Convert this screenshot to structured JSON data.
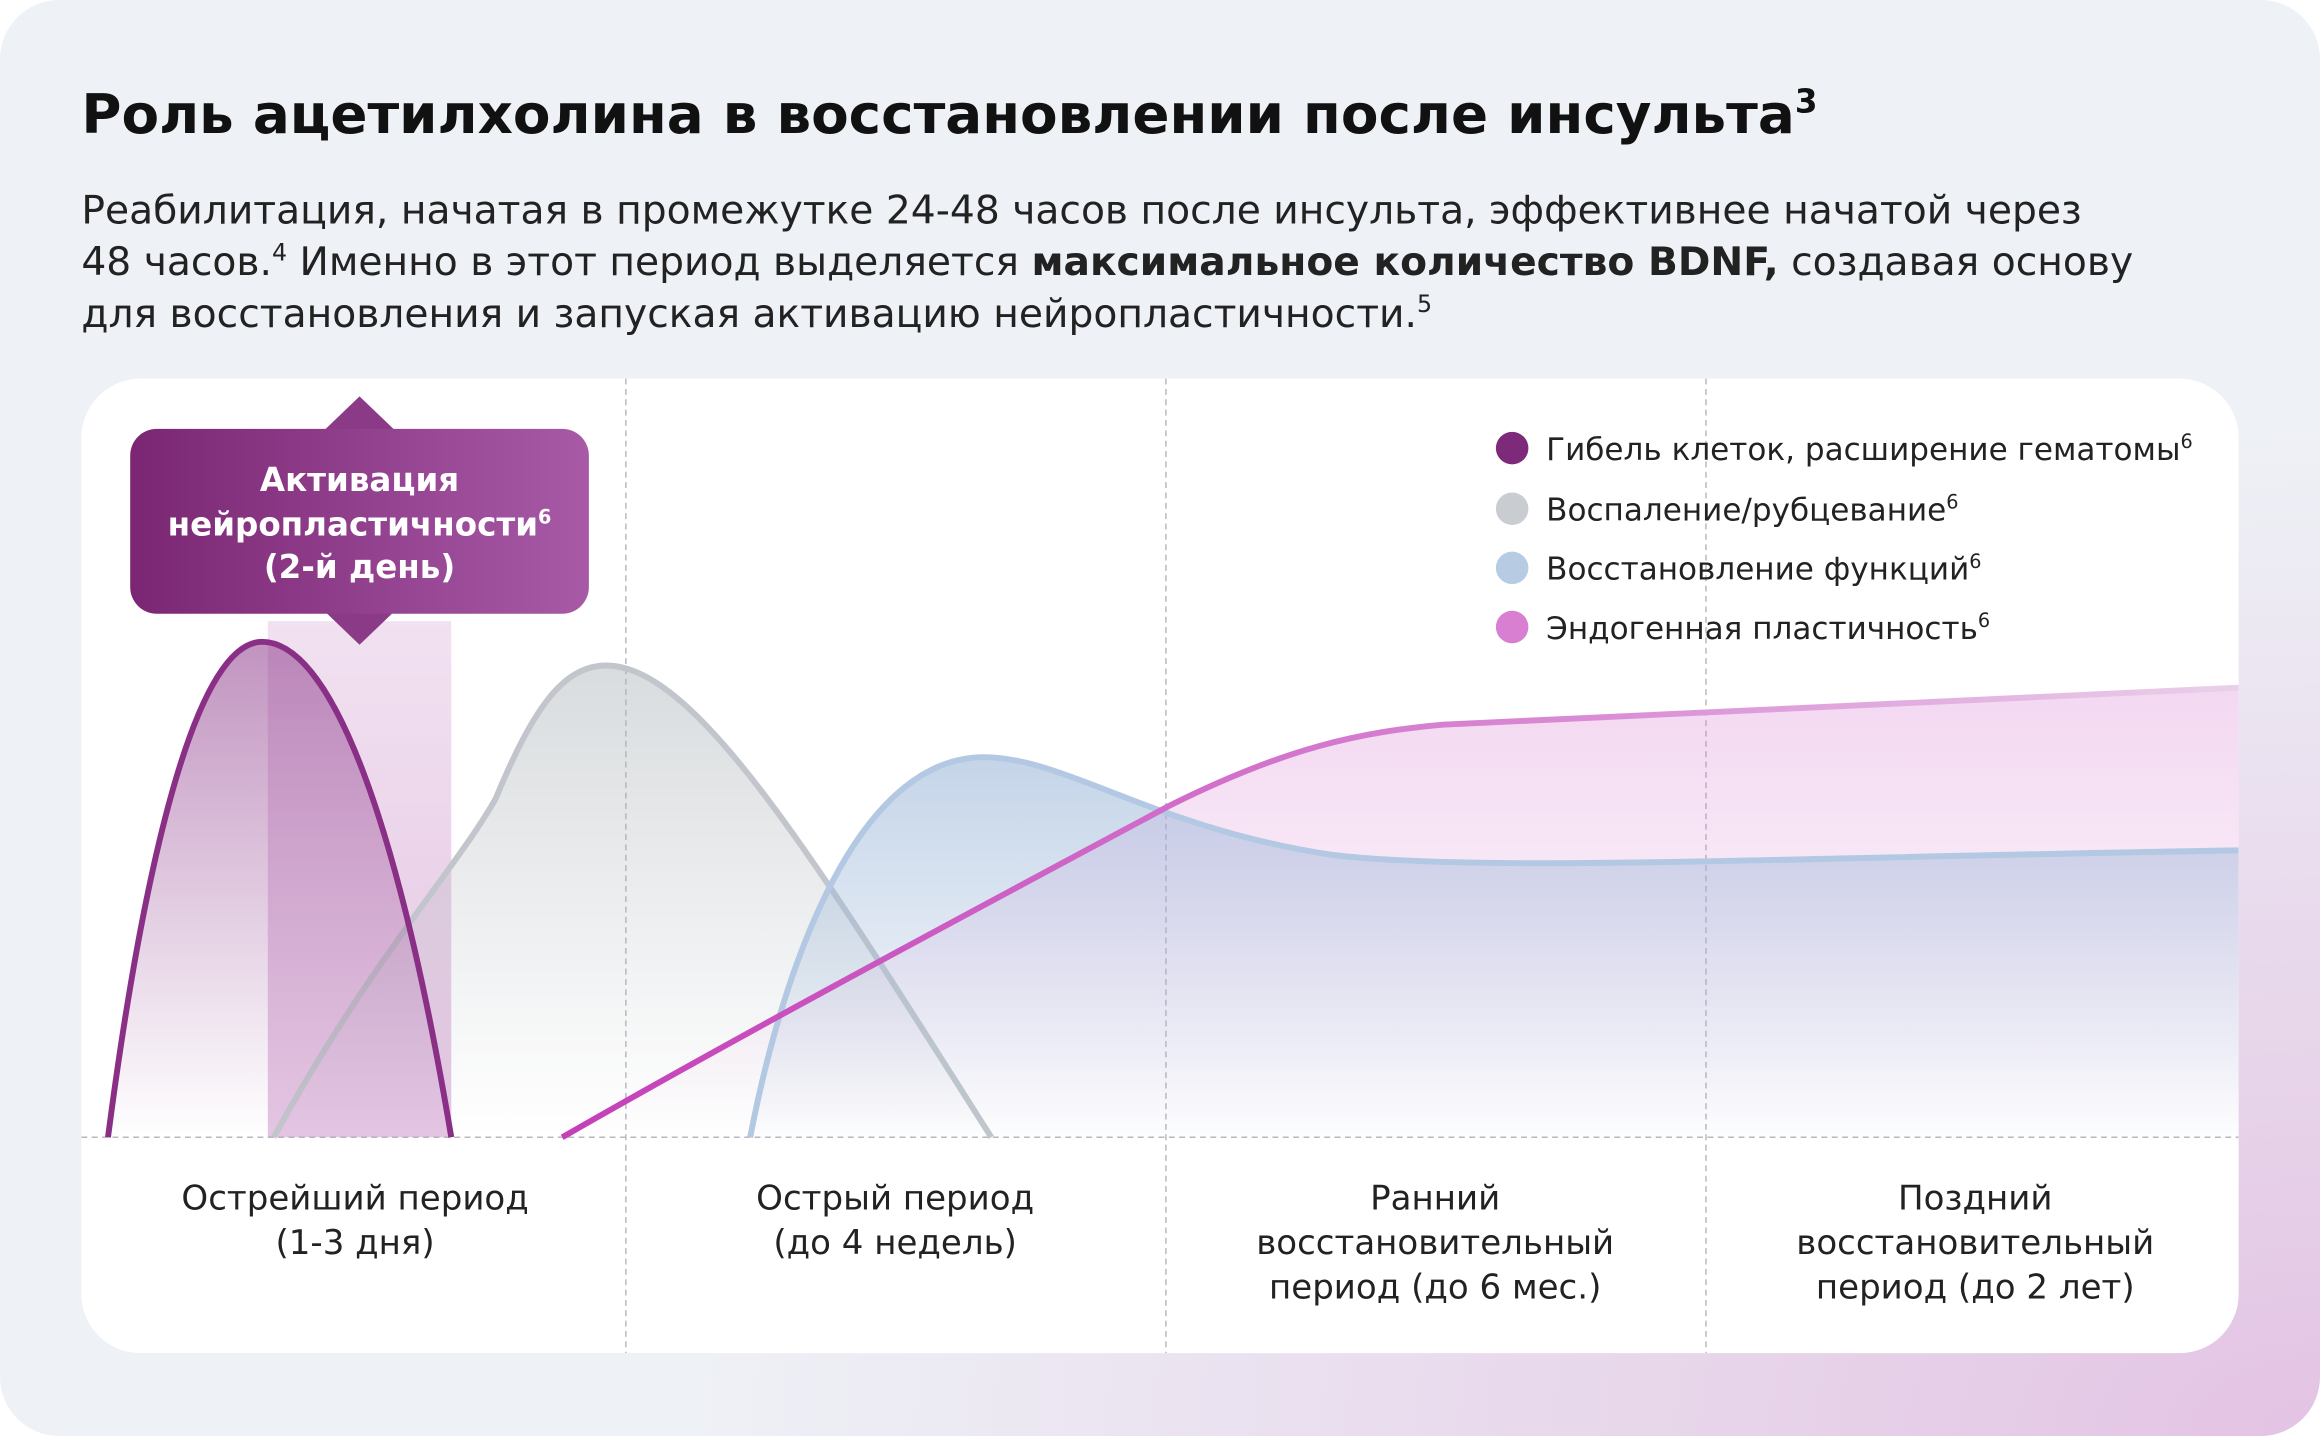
{
  "header": {
    "title": "Роль ацетилхолина в восстановлении после инсульта",
    "title_ref": "3"
  },
  "intro": {
    "line1": "Реабилитация, начатая в промежутке 24-48 часов после инсульта, эффективнее начатой через",
    "line2_a": "48 часов.",
    "ref_a": "4",
    "line2_b": " Именно в этот период выделяется ",
    "line2_bold": "максимальное количество BDNF,",
    "line2_c": " создавая основу",
    "line3": "для восстановления и запуская активацию нейропластичности.",
    "ref_b": "5"
  },
  "callout": {
    "lines": [
      "Активация",
      "нейропластичности",
      "(2-й день)"
    ],
    "ref": "6"
  },
  "legend": [
    {
      "label": "Гибель клеток, расширение гематомы",
      "ref": "6"
    },
    {
      "label": "Воспаление/рубцевание",
      "ref": "6"
    },
    {
      "label": "Восстановление функций",
      "ref": "6"
    },
    {
      "label": "Эндогенная пластичность",
      "ref": "6"
    }
  ],
  "periods": [
    {
      "lines": [
        "Острейший период",
        "(1-3 дня)"
      ]
    },
    {
      "lines": [
        "Острый период",
        "(до 4 недель)"
      ]
    },
    {
      "lines": [
        "Ранний",
        "восстановительный",
        "период (до 6 мес.)"
      ]
    },
    {
      "lines": [
        "Поздний",
        "восстановительный",
        "период (до 2 лет)"
      ]
    }
  ]
}
